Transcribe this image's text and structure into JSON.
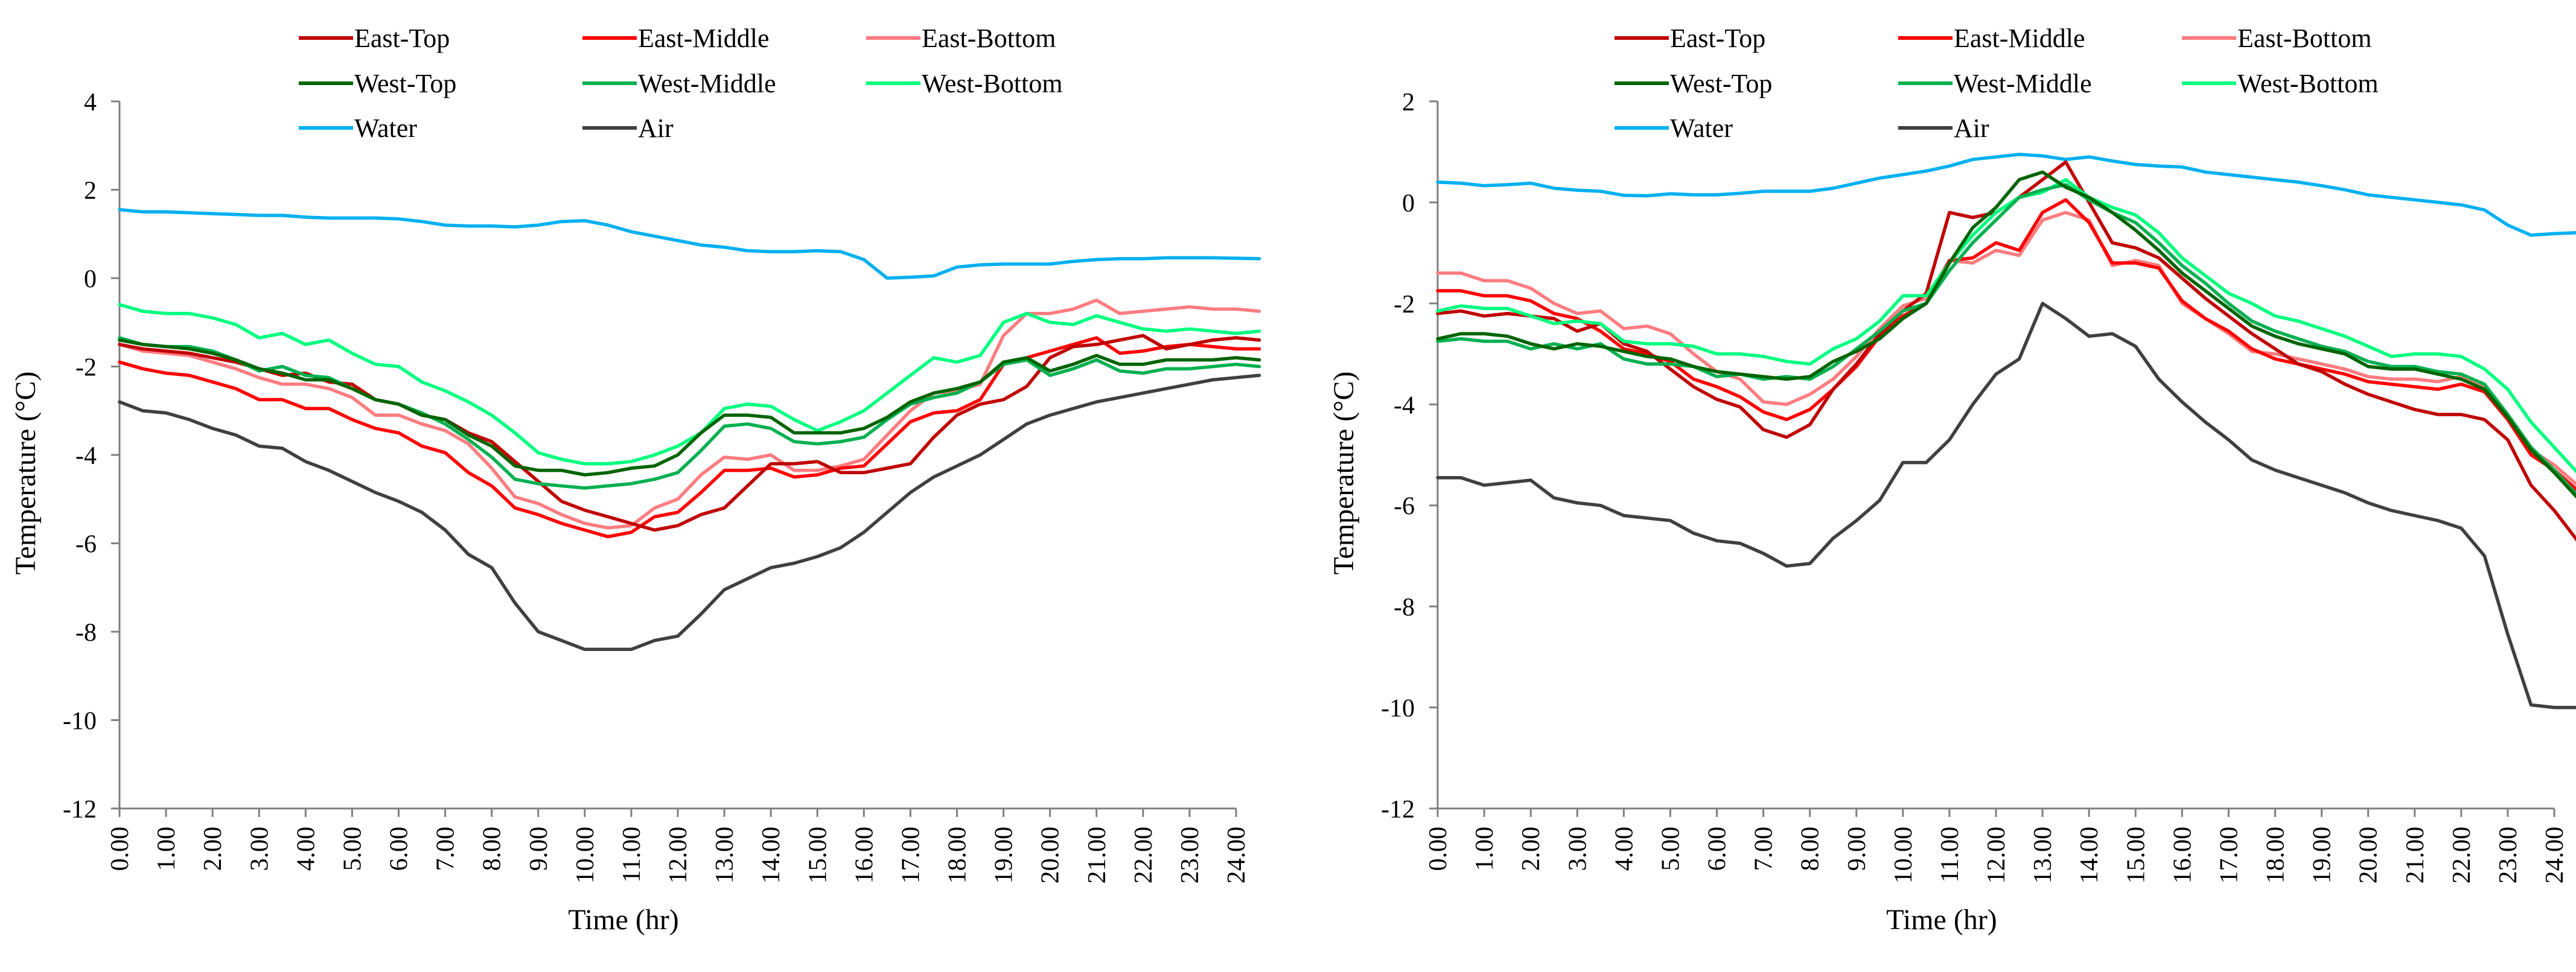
{
  "chart_data": [
    {
      "type": "line",
      "title": "",
      "xlabel": "Time (hr)",
      "ylabel": "Temperature (°C)",
      "xlim": [
        0,
        24
      ],
      "ylim": [
        -12,
        4
      ],
      "x_ticks": [
        "0.00",
        "1.00",
        "2.00",
        "3.00",
        "4.00",
        "5.00",
        "6.00",
        "7.00",
        "8.00",
        "9.00",
        "10.00",
        "11.00",
        "12.00",
        "13.00",
        "14.00",
        "15.00",
        "16.00",
        "17.00",
        "18.00",
        "19.00",
        "20.00",
        "21.00",
        "22.00",
        "23.00",
        "24.00"
      ],
      "y_ticks": [
        "-12",
        "-10",
        "-8",
        "-6",
        "-4",
        "-2",
        "0",
        "2",
        "4"
      ],
      "grid": false,
      "legend_position": "top",
      "x_start": 0,
      "x_step": 0.5,
      "series": [
        {
          "name": "East-Top",
          "color": "#c00000",
          "values": [
            -1.5,
            -1.6,
            -1.65,
            -1.7,
            -1.8,
            -1.9,
            -2.05,
            -2.2,
            -2.15,
            -2.35,
            -2.4,
            -2.75,
            -2.85,
            -3.1,
            -3.2,
            -3.5,
            -3.7,
            -4.15,
            -4.6,
            -5.05,
            -5.25,
            -5.4,
            -5.55,
            -5.7,
            -5.6,
            -5.35,
            -5.2,
            -4.7,
            -4.2,
            -4.2,
            -4.15,
            -4.4,
            -4.4,
            -4.3,
            -4.2,
            -3.6,
            -3.1,
            -2.85,
            -2.75,
            -2.45,
            -1.8,
            -1.55,
            -1.5,
            -1.4,
            -1.3,
            -1.6,
            -1.5,
            -1.4,
            -1.35,
            -1.4
          ]
        },
        {
          "name": "East-Middle",
          "color": "#ff0000",
          "values": [
            -1.9,
            -2.05,
            -2.15,
            -2.2,
            -2.35,
            -2.5,
            -2.75,
            -2.75,
            -2.95,
            -2.95,
            -3.2,
            -3.4,
            -3.5,
            -3.8,
            -3.95,
            -4.4,
            -4.7,
            -5.2,
            -5.35,
            -5.55,
            -5.7,
            -5.85,
            -5.75,
            -5.4,
            -5.3,
            -4.85,
            -4.35,
            -4.35,
            -4.3,
            -4.5,
            -4.45,
            -4.3,
            -4.25,
            -3.75,
            -3.25,
            -3.05,
            -3.0,
            -2.75,
            -1.95,
            -1.8,
            -1.65,
            -1.5,
            -1.35,
            -1.7,
            -1.65,
            -1.55,
            -1.5,
            -1.55,
            -1.6,
            -1.6
          ]
        },
        {
          "name": "East-Bottom",
          "color": "#ff7c80",
          "values": [
            -1.5,
            -1.65,
            -1.7,
            -1.75,
            -1.9,
            -2.05,
            -2.25,
            -2.4,
            -2.4,
            -2.5,
            -2.7,
            -3.1,
            -3.1,
            -3.3,
            -3.45,
            -3.75,
            -4.3,
            -4.95,
            -5.1,
            -5.35,
            -5.55,
            -5.65,
            -5.6,
            -5.2,
            -5.0,
            -4.45,
            -4.05,
            -4.1,
            -4.0,
            -4.35,
            -4.35,
            -4.25,
            -4.1,
            -3.55,
            -3.0,
            -2.6,
            -2.55,
            -2.4,
            -1.3,
            -0.8,
            -0.8,
            -0.7,
            -0.5,
            -0.8,
            -0.75,
            -0.7,
            -0.65,
            -0.7,
            -0.7,
            -0.75
          ]
        },
        {
          "name": "West-Top",
          "color": "#006400",
          "values": [
            -1.4,
            -1.5,
            -1.55,
            -1.6,
            -1.7,
            -1.85,
            -2.05,
            -2.15,
            -2.3,
            -2.3,
            -2.5,
            -2.75,
            -2.85,
            -3.1,
            -3.2,
            -3.55,
            -3.8,
            -4.25,
            -4.35,
            -4.35,
            -4.45,
            -4.4,
            -4.3,
            -4.25,
            -4.0,
            -3.5,
            -3.1,
            -3.1,
            -3.15,
            -3.5,
            -3.5,
            -3.5,
            -3.4,
            -3.15,
            -2.8,
            -2.6,
            -2.5,
            -2.35,
            -1.9,
            -1.8,
            -2.1,
            -1.95,
            -1.75,
            -1.95,
            -1.95,
            -1.85,
            -1.85,
            -1.85,
            -1.8,
            -1.85
          ]
        },
        {
          "name": "West-Middle",
          "color": "#00b050",
          "values": [
            -1.35,
            -1.5,
            -1.55,
            -1.55,
            -1.65,
            -1.85,
            -2.1,
            -2.0,
            -2.2,
            -2.25,
            -2.5,
            -2.75,
            -2.85,
            -3.05,
            -3.3,
            -3.65,
            -4.05,
            -4.55,
            -4.65,
            -4.7,
            -4.75,
            -4.7,
            -4.65,
            -4.55,
            -4.4,
            -3.9,
            -3.35,
            -3.3,
            -3.4,
            -3.7,
            -3.75,
            -3.7,
            -3.6,
            -3.2,
            -2.85,
            -2.7,
            -2.6,
            -2.35,
            -1.95,
            -1.85,
            -2.2,
            -2.05,
            -1.85,
            -2.1,
            -2.15,
            -2.05,
            -2.05,
            -2.0,
            -1.95,
            -2.0
          ]
        },
        {
          "name": "West-Bottom",
          "color": "#00ff7f",
          "values": [
            -0.6,
            -0.75,
            -0.8,
            -0.8,
            -0.9,
            -1.05,
            -1.35,
            -1.25,
            -1.5,
            -1.4,
            -1.7,
            -1.95,
            -2.0,
            -2.35,
            -2.55,
            -2.8,
            -3.1,
            -3.5,
            -3.95,
            -4.1,
            -4.2,
            -4.2,
            -4.15,
            -4.0,
            -3.8,
            -3.5,
            -2.95,
            -2.85,
            -2.9,
            -3.2,
            -3.45,
            -3.25,
            -3.0,
            -2.6,
            -2.2,
            -1.8,
            -1.9,
            -1.75,
            -1.0,
            -0.8,
            -1.0,
            -1.05,
            -0.85,
            -1.0,
            -1.15,
            -1.2,
            -1.15,
            -1.2,
            -1.25,
            -1.2
          ]
        },
        {
          "name": "Water",
          "color": "#00b0f0",
          "values": [
            1.55,
            1.5,
            1.5,
            1.48,
            1.46,
            1.44,
            1.42,
            1.42,
            1.38,
            1.36,
            1.36,
            1.36,
            1.34,
            1.28,
            1.2,
            1.18,
            1.18,
            1.16,
            1.2,
            1.28,
            1.3,
            1.2,
            1.05,
            0.95,
            0.85,
            0.75,
            0.7,
            0.62,
            0.6,
            0.6,
            0.62,
            0.6,
            0.42,
            0.0,
            0.02,
            0.05,
            0.25,
            0.3,
            0.32,
            0.32,
            0.32,
            0.38,
            0.42,
            0.44,
            0.44,
            0.46,
            0.46,
            0.46,
            0.45,
            0.44
          ]
        },
        {
          "name": "Air",
          "color": "#404040",
          "values": [
            -2.8,
            -3.0,
            -3.05,
            -3.2,
            -3.4,
            -3.55,
            -3.8,
            -3.85,
            -4.15,
            -4.35,
            -4.6,
            -4.85,
            -5.05,
            -5.3,
            -5.7,
            -6.25,
            -6.55,
            -7.35,
            -8.0,
            -8.2,
            -8.4,
            -8.4,
            -8.4,
            -8.2,
            -8.1,
            -7.6,
            -7.05,
            -6.8,
            -6.55,
            -6.45,
            -6.3,
            -6.1,
            -5.75,
            -5.3,
            -4.85,
            -4.5,
            -4.25,
            -4.0,
            -3.65,
            -3.3,
            -3.1,
            -2.95,
            -2.8,
            -2.7,
            -2.6,
            -2.5,
            -2.4,
            -2.3,
            -2.25,
            -2.2
          ]
        }
      ]
    },
    {
      "type": "line",
      "title": "",
      "xlabel": "Time (hr)",
      "ylabel": "Temperature (°C)",
      "xlim": [
        0,
        24
      ],
      "ylim": [
        -12,
        2
      ],
      "x_ticks": [
        "0.00",
        "1.00",
        "2.00",
        "3.00",
        "4.00",
        "5.00",
        "6.00",
        "7.00",
        "8.00",
        "9.00",
        "10.00",
        "11.00",
        "12.00",
        "13.00",
        "14.00",
        "15.00",
        "16.00",
        "17.00",
        "18.00",
        "19.00",
        "20.00",
        "21.00",
        "22.00",
        "23.00",
        "24.00"
      ],
      "y_ticks": [
        "-12",
        "-10",
        "-8",
        "-6",
        "-4",
        "-2",
        "0",
        "2"
      ],
      "grid": false,
      "legend_position": "top",
      "x_start": 0,
      "x_step": 0.5,
      "series": [
        {
          "name": "East-Top",
          "color": "#c00000",
          "values": [
            -2.2,
            -2.15,
            -2.25,
            -2.2,
            -2.25,
            -2.3,
            -2.55,
            -2.4,
            -2.8,
            -2.95,
            -3.3,
            -3.65,
            -3.9,
            -4.05,
            -4.5,
            -4.65,
            -4.4,
            -3.7,
            -3.2,
            -2.6,
            -2.15,
            -1.8,
            -0.2,
            -0.3,
            -0.2,
            0.1,
            0.45,
            0.8,
            0.0,
            -0.8,
            -0.9,
            -1.1,
            -1.5,
            -1.9,
            -2.25,
            -2.6,
            -2.9,
            -3.2,
            -3.35,
            -3.6,
            -3.8,
            -3.95,
            -4.1,
            -4.2,
            -4.2,
            -4.3,
            -4.7,
            -5.6,
            -6.1,
            -6.7
          ]
        },
        {
          "name": "East-Middle",
          "color": "#ff0000",
          "values": [
            -1.75,
            -1.75,
            -1.85,
            -1.85,
            -1.95,
            -2.2,
            -2.3,
            -2.55,
            -2.9,
            -3.0,
            -3.15,
            -3.5,
            -3.65,
            -3.85,
            -4.15,
            -4.3,
            -4.1,
            -3.7,
            -3.25,
            -2.65,
            -2.25,
            -2.0,
            -1.15,
            -1.1,
            -0.8,
            -0.95,
            -0.2,
            0.05,
            -0.4,
            -1.2,
            -1.2,
            -1.3,
            -1.95,
            -2.3,
            -2.55,
            -2.9,
            -3.1,
            -3.2,
            -3.3,
            -3.4,
            -3.55,
            -3.6,
            -3.65,
            -3.7,
            -3.6,
            -3.75,
            -4.3,
            -5.0,
            -5.3,
            -5.7
          ]
        },
        {
          "name": "East-Bottom",
          "color": "#ff7c80",
          "values": [
            -1.4,
            -1.4,
            -1.55,
            -1.55,
            -1.7,
            -2.0,
            -2.2,
            -2.15,
            -2.5,
            -2.45,
            -2.6,
            -3.0,
            -3.35,
            -3.5,
            -3.95,
            -4.0,
            -3.8,
            -3.5,
            -3.05,
            -2.5,
            -2.05,
            -1.9,
            -1.15,
            -1.2,
            -0.95,
            -1.05,
            -0.35,
            -0.2,
            -0.35,
            -1.25,
            -1.15,
            -1.25,
            -2.0,
            -2.3,
            -2.6,
            -2.95,
            -3.0,
            -3.1,
            -3.2,
            -3.3,
            -3.45,
            -3.5,
            -3.5,
            -3.55,
            -3.45,
            -3.65,
            -4.25,
            -4.9,
            -5.2,
            -5.6
          ]
        },
        {
          "name": "West-Top",
          "color": "#006400",
          "values": [
            -2.7,
            -2.6,
            -2.6,
            -2.65,
            -2.8,
            -2.9,
            -2.8,
            -2.85,
            -2.95,
            -3.05,
            -3.1,
            -3.25,
            -3.35,
            -3.4,
            -3.45,
            -3.5,
            -3.45,
            -3.15,
            -2.95,
            -2.7,
            -2.3,
            -2.0,
            -1.2,
            -0.5,
            -0.1,
            0.45,
            0.6,
            0.3,
            0.1,
            -0.2,
            -0.55,
            -0.95,
            -1.4,
            -1.75,
            -2.1,
            -2.45,
            -2.65,
            -2.8,
            -2.9,
            -3.0,
            -3.25,
            -3.3,
            -3.3,
            -3.4,
            -3.5,
            -3.7,
            -4.25,
            -4.9,
            -5.35,
            -5.85
          ]
        },
        {
          "name": "West-Middle",
          "color": "#00b050",
          "values": [
            -2.75,
            -2.7,
            -2.75,
            -2.75,
            -2.9,
            -2.8,
            -2.9,
            -2.8,
            -3.1,
            -3.2,
            -3.2,
            -3.25,
            -3.45,
            -3.4,
            -3.5,
            -3.45,
            -3.5,
            -3.25,
            -2.9,
            -2.55,
            -2.15,
            -2.0,
            -1.35,
            -0.8,
            -0.35,
            0.1,
            0.25,
            0.35,
            0.05,
            -0.2,
            -0.4,
            -0.8,
            -1.25,
            -1.6,
            -2.0,
            -2.35,
            -2.55,
            -2.7,
            -2.85,
            -2.95,
            -3.15,
            -3.25,
            -3.25,
            -3.35,
            -3.4,
            -3.6,
            -4.2,
            -4.85,
            -5.3,
            -5.8
          ]
        },
        {
          "name": "West-Bottom",
          "color": "#00ff7f",
          "values": [
            -2.15,
            -2.05,
            -2.1,
            -2.1,
            -2.25,
            -2.4,
            -2.35,
            -2.4,
            -2.75,
            -2.8,
            -2.8,
            -2.85,
            -3.0,
            -3.0,
            -3.05,
            -3.15,
            -3.2,
            -2.9,
            -2.7,
            -2.35,
            -1.85,
            -1.85,
            -1.2,
            -0.65,
            -0.2,
            0.1,
            0.2,
            0.45,
            0.1,
            -0.1,
            -0.25,
            -0.6,
            -1.1,
            -1.45,
            -1.8,
            -2.0,
            -2.25,
            -2.35,
            -2.5,
            -2.65,
            -2.85,
            -3.05,
            -3.0,
            -3.0,
            -3.05,
            -3.3,
            -3.7,
            -4.35,
            -4.85,
            -5.35
          ]
        },
        {
          "name": "Water",
          "color": "#00b0f0",
          "values": [
            0.4,
            0.38,
            0.33,
            0.35,
            0.38,
            0.28,
            0.24,
            0.22,
            0.14,
            0.13,
            0.17,
            0.15,
            0.15,
            0.18,
            0.22,
            0.22,
            0.22,
            0.28,
            0.38,
            0.48,
            0.55,
            0.62,
            0.72,
            0.85,
            0.9,
            0.95,
            0.92,
            0.85,
            0.9,
            0.82,
            0.75,
            0.72,
            0.7,
            0.6,
            0.55,
            0.5,
            0.45,
            0.4,
            0.33,
            0.25,
            0.15,
            0.1,
            0.05,
            0.0,
            -0.05,
            -0.15,
            -0.45,
            -0.65,
            -0.62,
            -0.6
          ]
        },
        {
          "name": "Air",
          "color": "#404040",
          "values": [
            -5.45,
            -5.45,
            -5.6,
            -5.55,
            -5.5,
            -5.85,
            -5.95,
            -6.0,
            -6.2,
            -6.25,
            -6.3,
            -6.55,
            -6.7,
            -6.75,
            -6.95,
            -7.2,
            -7.15,
            -6.65,
            -6.3,
            -5.9,
            -5.15,
            -5.15,
            -4.7,
            -4.0,
            -3.4,
            -3.1,
            -2.0,
            -2.3,
            -2.65,
            -2.6,
            -2.85,
            -3.5,
            -3.95,
            -4.35,
            -4.7,
            -5.1,
            -5.3,
            -5.45,
            -5.6,
            -5.75,
            -5.95,
            -6.1,
            -6.2,
            -6.3,
            -6.45,
            -7.0,
            -8.55,
            -9.95,
            -10.0,
            -10.0
          ]
        }
      ]
    }
  ]
}
